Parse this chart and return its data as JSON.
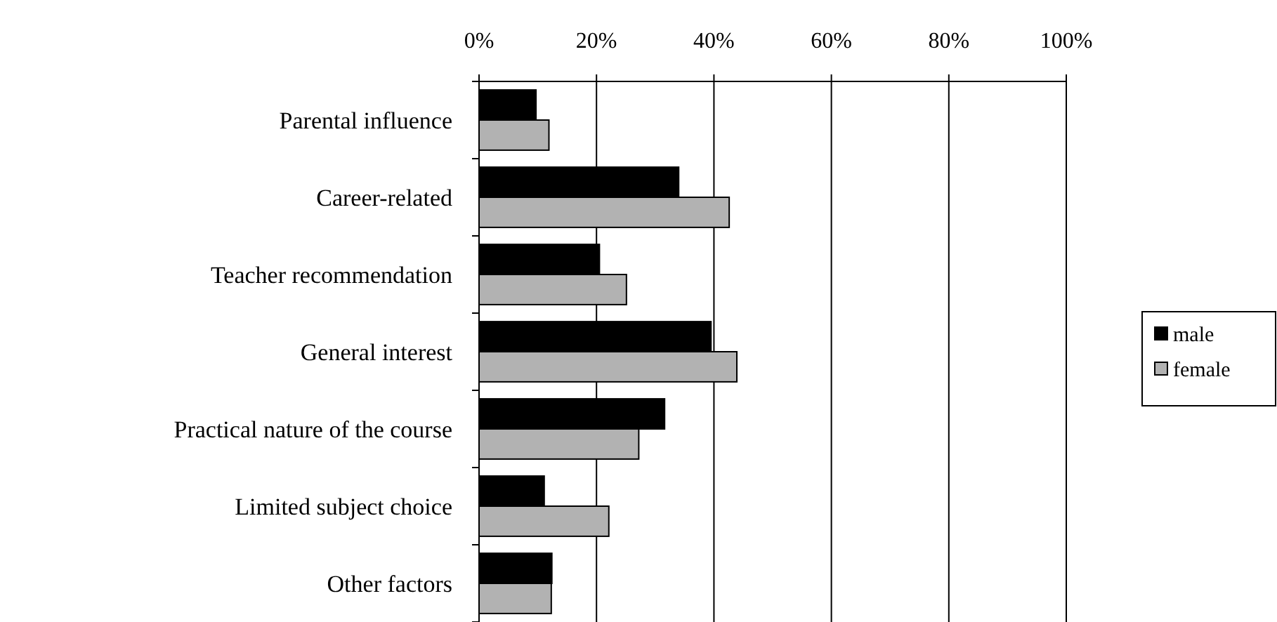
{
  "chart_data": {
    "type": "bar",
    "orientation": "horizontal",
    "categories": [
      "Parental influence",
      "Career-related",
      "Teacher recommendation",
      "General interest",
      "Practical nature of the course",
      "Limited subject choice",
      "Other factors"
    ],
    "series": [
      {
        "name": "male",
        "color": "#000000",
        "values": [
          9.7,
          34,
          20.5,
          39.5,
          31.6,
          11.1,
          12.4
        ]
      },
      {
        "name": "female",
        "color": "#b2b2b2",
        "values": [
          11.9,
          42.6,
          25.1,
          43.9,
          27.2,
          22.1,
          12.3
        ]
      }
    ],
    "xlim": [
      0,
      100
    ],
    "xticks": [
      {
        "value": 0,
        "label": "0%"
      },
      {
        "value": 20,
        "label": "20%"
      },
      {
        "value": 40,
        "label": "40%"
      },
      {
        "value": 60,
        "label": "60%"
      },
      {
        "value": 80,
        "label": "80%"
      },
      {
        "value": 100,
        "label": "100%"
      }
    ],
    "grid": "x",
    "legend": "right"
  }
}
